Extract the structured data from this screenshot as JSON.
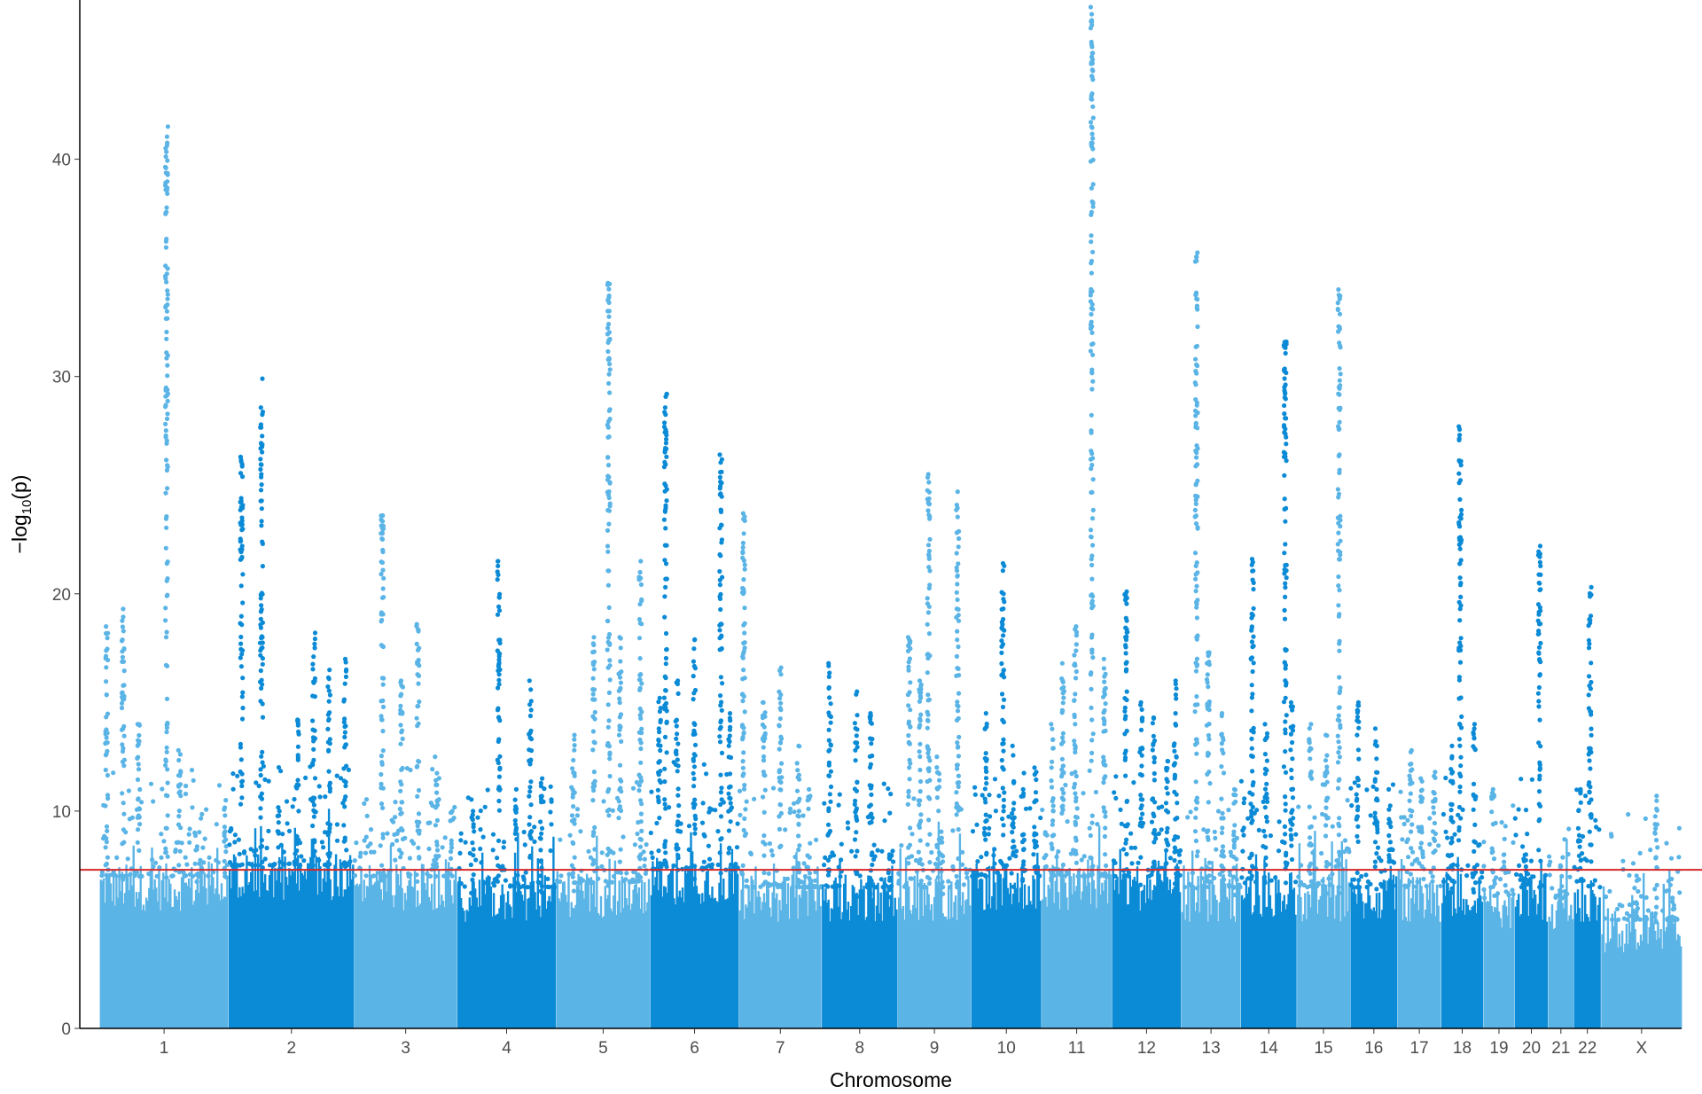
{
  "chart_data": {
    "type": "scatter",
    "title": "",
    "xlabel": "Chromosome",
    "ylabel": "-log10(p)",
    "ylabel_parts": {
      "prefix": "−log",
      "sub": "10",
      "suffix": "(p)"
    },
    "ylim": [
      0,
      47
    ],
    "yticks": [
      0,
      10,
      20,
      30,
      40
    ],
    "significance_threshold": 7.3,
    "grid": false,
    "legend": "none",
    "colors": {
      "light": "#5bb4e6",
      "dark": "#0b8ad6",
      "threshold": "#d62728",
      "axis": "#000000"
    },
    "chromosomes": [
      {
        "label": "1",
        "size": 249,
        "color": "light",
        "base": 6.5,
        "peaks": [
          [
            0.05,
            18.5
          ],
          [
            0.18,
            19.3
          ],
          [
            0.3,
            14
          ],
          [
            0.52,
            41.5
          ],
          [
            0.62,
            12.8
          ],
          [
            0.75,
            9
          ],
          [
            0.98,
            10.5
          ]
        ]
      },
      {
        "label": "2",
        "size": 243,
        "color": "dark",
        "base": 7.0,
        "peaks": [
          [
            0.1,
            26.3
          ],
          [
            0.26,
            29.9
          ],
          [
            0.4,
            10
          ],
          [
            0.55,
            14.2
          ],
          [
            0.68,
            18.2
          ],
          [
            0.8,
            16.5
          ],
          [
            0.93,
            17
          ]
        ]
      },
      {
        "label": "3",
        "size": 198,
        "color": "light",
        "base": 6.5,
        "peaks": [
          [
            0.27,
            23.6
          ],
          [
            0.46,
            16
          ],
          [
            0.62,
            18.6
          ],
          [
            0.8,
            12.5
          ],
          [
            0.95,
            10
          ]
        ]
      },
      {
        "label": "4",
        "size": 191,
        "color": "dark",
        "base": 6.0,
        "peaks": [
          [
            0.15,
            10
          ],
          [
            0.42,
            21.5
          ],
          [
            0.6,
            11
          ],
          [
            0.74,
            16
          ],
          [
            0.85,
            11.5
          ]
        ]
      },
      {
        "label": "5",
        "size": 181,
        "color": "light",
        "base": 6.2,
        "peaks": [
          [
            0.18,
            13.5
          ],
          [
            0.4,
            18
          ],
          [
            0.56,
            34.3
          ],
          [
            0.68,
            18
          ],
          [
            0.9,
            21.5
          ]
        ]
      },
      {
        "label": "6",
        "size": 171,
        "color": "dark",
        "base": 6.8,
        "peaks": [
          [
            0.1,
            15.2
          ],
          [
            0.17,
            29.2
          ],
          [
            0.3,
            16
          ],
          [
            0.5,
            17.9
          ],
          [
            0.8,
            26.4
          ],
          [
            0.9,
            14.5
          ]
        ]
      },
      {
        "label": "7",
        "size": 159,
        "color": "light",
        "base": 6.0,
        "peaks": [
          [
            0.05,
            23.7
          ],
          [
            0.3,
            15
          ],
          [
            0.5,
            16.6
          ],
          [
            0.72,
            13
          ],
          [
            0.85,
            11
          ]
        ]
      },
      {
        "label": "8",
        "size": 146,
        "color": "dark",
        "base": 6.0,
        "peaks": [
          [
            0.1,
            16.8
          ],
          [
            0.45,
            15.5
          ],
          [
            0.65,
            14.5
          ],
          [
            0.9,
            8
          ]
        ]
      },
      {
        "label": "9",
        "size": 141,
        "color": "light",
        "base": 6.0,
        "peaks": [
          [
            0.15,
            18
          ],
          [
            0.3,
            16
          ],
          [
            0.42,
            25.5
          ],
          [
            0.55,
            12.5
          ],
          [
            0.6,
            8
          ],
          [
            0.82,
            24.7
          ]
        ]
      },
      {
        "label": "10",
        "size": 135,
        "color": "dark",
        "base": 6.5,
        "peaks": [
          [
            0.2,
            14.5
          ],
          [
            0.45,
            21.4
          ],
          [
            0.6,
            13
          ],
          [
            0.75,
            11
          ],
          [
            0.92,
            12
          ]
        ]
      },
      {
        "label": "11",
        "size": 135,
        "color": "light",
        "base": 6.5,
        "peaks": [
          [
            0.15,
            14
          ],
          [
            0.3,
            16.8
          ],
          [
            0.48,
            18.5
          ],
          [
            0.72,
            47
          ],
          [
            0.9,
            17
          ]
        ]
      },
      {
        "label": "12",
        "size": 133,
        "color": "dark",
        "base": 6.5,
        "peaks": [
          [
            0.2,
            20.1
          ],
          [
            0.42,
            15
          ],
          [
            0.6,
            14.3
          ],
          [
            0.8,
            12.3
          ],
          [
            0.92,
            16
          ]
        ]
      },
      {
        "label": "13",
        "size": 114,
        "color": "light",
        "base": 6.0,
        "peaks": [
          [
            0.25,
            35.7
          ],
          [
            0.45,
            17.3
          ],
          [
            0.7,
            14.5
          ],
          [
            0.9,
            11
          ]
        ]
      },
      {
        "label": "14",
        "size": 107,
        "color": "dark",
        "base": 6.2,
        "peaks": [
          [
            0.2,
            21.6
          ],
          [
            0.45,
            14
          ],
          [
            0.8,
            31.6
          ],
          [
            0.92,
            15
          ]
        ]
      },
      {
        "label": "15",
        "size": 102,
        "color": "light",
        "base": 6.0,
        "peaks": [
          [
            0.25,
            14
          ],
          [
            0.55,
            13.5
          ],
          [
            0.8,
            34
          ]
        ]
      },
      {
        "label": "16",
        "size": 90,
        "color": "dark",
        "base": 6.0,
        "peaks": [
          [
            0.15,
            15
          ],
          [
            0.55,
            13.8
          ],
          [
            0.85,
            11
          ]
        ]
      },
      {
        "label": "17",
        "size": 83,
        "color": "light",
        "base": 6.0,
        "peaks": [
          [
            0.3,
            12.8
          ],
          [
            0.55,
            11.5
          ],
          [
            0.85,
            11.8
          ]
        ]
      },
      {
        "label": "18",
        "size": 80,
        "color": "dark",
        "base": 6.2,
        "peaks": [
          [
            0.25,
            13
          ],
          [
            0.45,
            27.7
          ],
          [
            0.8,
            14
          ]
        ]
      },
      {
        "label": "19",
        "size": 59,
        "color": "light",
        "base": 5.5,
        "peaks": [
          [
            0.3,
            11
          ],
          [
            0.7,
            8
          ]
        ]
      },
      {
        "label": "20",
        "size": 63,
        "color": "dark",
        "base": 6.0,
        "peaks": [
          [
            0.3,
            8
          ],
          [
            0.75,
            22.2
          ]
        ]
      },
      {
        "label": "21",
        "size": 48,
        "color": "light",
        "base": 5.5,
        "peaks": [
          [
            0.5,
            7.5
          ]
        ]
      },
      {
        "label": "22",
        "size": 51,
        "color": "dark",
        "base": 6.0,
        "peaks": [
          [
            0.2,
            11
          ],
          [
            0.6,
            20.3
          ]
        ]
      },
      {
        "label": "X",
        "size": 156,
        "color": "light",
        "base": 4.5,
        "peaks": [
          [
            0.45,
            6.8
          ],
          [
            0.68,
            10.7
          ],
          [
            0.9,
            6
          ]
        ]
      }
    ]
  }
}
